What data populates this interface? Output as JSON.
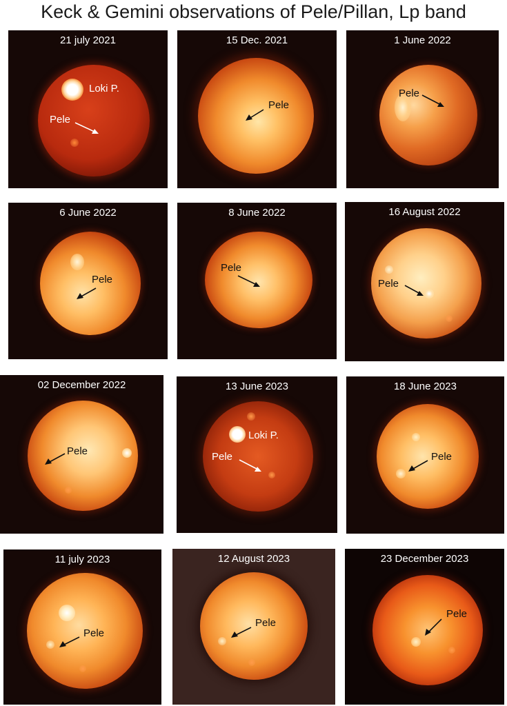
{
  "title": "Keck & Gemini observations of Pele/Pillan, Lp band",
  "panels": [
    {
      "date": "21 july 2021",
      "labels": {
        "loki": "Loki P.",
        "pele": "Pele"
      },
      "label_color": "#ffffff",
      "arrow_color": "#ffffff"
    },
    {
      "date": "15 Dec. 2021",
      "labels": {
        "pele": "Pele"
      },
      "label_color": "#111111",
      "arrow_color": "#111111"
    },
    {
      "date": "1 June 2022",
      "labels": {
        "pele": "Pele"
      },
      "label_color": "#111111",
      "arrow_color": "#111111"
    },
    {
      "date": "6 June 2022",
      "labels": {
        "pele": "Pele"
      },
      "label_color": "#111111",
      "arrow_color": "#111111"
    },
    {
      "date": "8 June 2022",
      "labels": {
        "pele": "Pele"
      },
      "label_color": "#111111",
      "arrow_color": "#111111"
    },
    {
      "date": "16 August 2022",
      "labels": {
        "pele": "Pele"
      },
      "label_color": "#111111",
      "arrow_color": "#111111"
    },
    {
      "date": "02 December 2022",
      "labels": {
        "pele": "Pele"
      },
      "label_color": "#111111",
      "arrow_color": "#111111"
    },
    {
      "date": "13 June 2023",
      "labels": {
        "loki": "Loki P.",
        "pele": "Pele"
      },
      "label_color": "#ffffff",
      "arrow_color": "#ffffff"
    },
    {
      "date": "18 June 2023",
      "labels": {
        "pele": "Pele"
      },
      "label_color": "#111111",
      "arrow_color": "#111111"
    },
    {
      "date": "11 july 2023",
      "labels": {
        "pele": "Pele"
      },
      "label_color": "#111111",
      "arrow_color": "#111111"
    },
    {
      "date": "12 August 2023",
      "labels": {
        "pele": "Pele"
      },
      "label_color": "#111111",
      "arrow_color": "#111111"
    },
    {
      "date": "23 December 2023",
      "labels": {
        "pele": "Pele"
      },
      "label_color": "#111111",
      "arrow_color": "#111111"
    }
  ]
}
